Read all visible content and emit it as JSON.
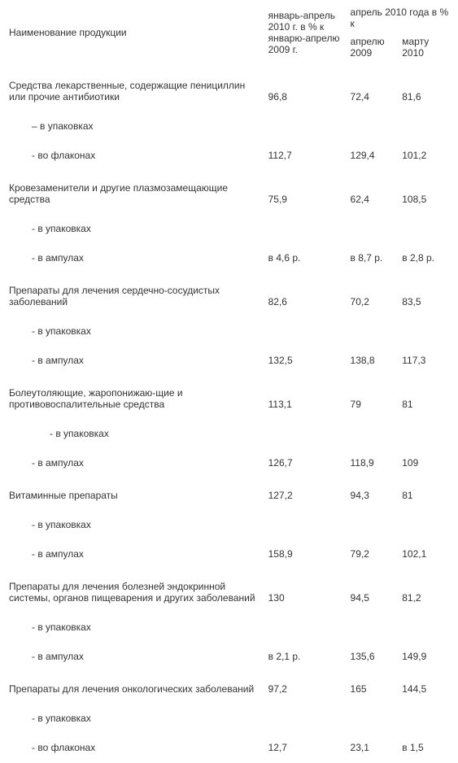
{
  "colors": {
    "background": "#ffffff",
    "text": "#333333"
  },
  "typography": {
    "font_family": "Arial",
    "font_size_pt": 9
  },
  "header": {
    "col_name": "Наименование продукции",
    "col_jan_apr": "январь-апрель 2010 г. в % к январю-апрелю 2009 г.",
    "col_apr_group": "апрель 2010 года в % к",
    "col_apr_2009": "апрелю 2009",
    "col_mar_2010": "марту 2010"
  },
  "groups": [
    {
      "name": "Средства лекарственные, содержащие пенициллин или прочие антибиотики",
      "v1": "96,8",
      "v2": "72,4",
      "v3": "81,6",
      "sub": [
        {
          "name": "– в упаковках",
          "indent": 1,
          "v1": "",
          "v2": "",
          "v3": ""
        },
        {
          "name": "- во флаконах",
          "indent": 1,
          "v1": "112,7",
          "v2": "129,4",
          "v3": "101,2"
        }
      ]
    },
    {
      "name": "Кровезаменители и другие плазмозамещающие средства",
      "v1": "75,9",
      "v2": "62,4",
      "v3": "108,5",
      "sub": [
        {
          "name": "- в упаковках",
          "indent": 1,
          "v1": "",
          "v2": "",
          "v3": ""
        },
        {
          "name": "- в ампулах",
          "indent": 1,
          "v1": "в 4,6 р.",
          "v2": "в 8,7 р.",
          "v3": "в 2,8 р."
        }
      ]
    },
    {
      "name": "Препараты для лечения сердечно-сосудистых заболеваний",
      "v1": "82,6",
      "v2": "70,2",
      "v3": "83,5",
      "sub": [
        {
          "name": "- в упаковках",
          "indent": 1,
          "v1": "",
          "v2": "",
          "v3": ""
        },
        {
          "name": "- в ампулах",
          "indent": 1,
          "v1": "132,5",
          "v2": "138,8",
          "v3": "117,3"
        }
      ]
    },
    {
      "name": "Болеутоляющие, жаропонижаю-щие и противовоспалительные средства",
      "v1": "113,1",
      "v2": "79",
      "v3": "81",
      "sub": [
        {
          "name": "- в упаковках",
          "indent": 2,
          "v1": "",
          "v2": "",
          "v3": ""
        },
        {
          "name": "- в ампулах",
          "indent": 1,
          "v1": "126,7",
          "v2": "118,9",
          "v3": "109"
        }
      ]
    },
    {
      "name": "Витаминные препараты",
      "v1": "127,2",
      "v2": "94,3",
      "v3": "81",
      "sub": [
        {
          "name": "-  в упаковках",
          "indent": 1,
          "v1": "",
          "v2": "",
          "v3": ""
        },
        {
          "name": "-  в ампулах",
          "indent": 1,
          "v1": "158,9",
          "v2": "79,2",
          "v3": "102,1"
        }
      ]
    },
    {
      "name": "Препараты для лечения болезней эндокринной системы, органов пищеварения и других заболеваний",
      "v1": "130",
      "v2": "94,5",
      "v3": "81,2",
      "sub": [
        {
          "name": "- в упаковках",
          "indent": 1,
          "v1": "",
          "v2": "",
          "v3": ""
        },
        {
          "name": "- в ампулах",
          "indent": 1,
          "v1": "в 2,1 р.",
          "v2": "135,6",
          "v3": "149,9"
        }
      ]
    },
    {
      "name": "Препараты для лечения онкологических заболеваний",
      "v1": "97,2",
      "v2": "165",
      "v3": "144,5",
      "sub": [
        {
          "name": "- в упаковках",
          "indent": 1,
          "v1": "",
          "v2": "",
          "v3": ""
        },
        {
          "name": "- во флаконах",
          "indent": 1,
          "v1": "12,7",
          "v2": "23,1",
          "v3": "в 1,5"
        }
      ]
    }
  ]
}
